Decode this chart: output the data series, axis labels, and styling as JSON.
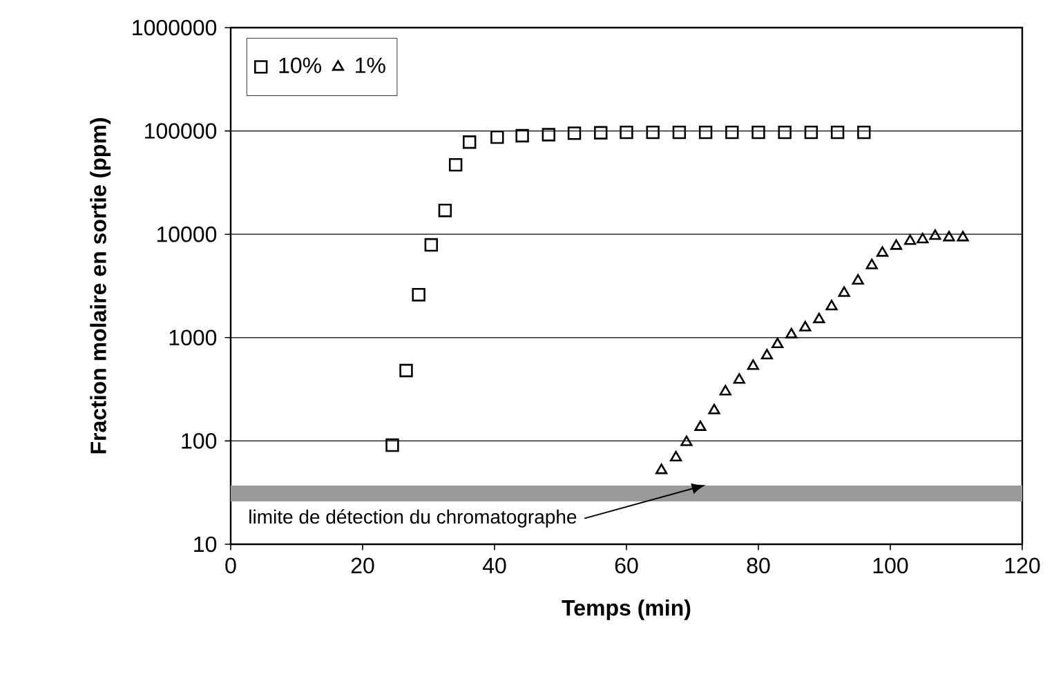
{
  "chart_data": {
    "type": "scatter",
    "xlabel": "Temps (min)",
    "ylabel": "Fraction molaire en sortie (ppm)",
    "log": "y",
    "grid": "y",
    "legend": "top left",
    "xlim": [
      0,
      120
    ],
    "xticks": [
      0,
      20,
      40,
      60,
      80,
      100,
      120
    ],
    "ylim": [
      10,
      1000000
    ],
    "yticks": [
      10,
      100,
      1000,
      10000,
      100000,
      1000000
    ],
    "series": [
      {
        "name": "10%",
        "color": "#000000",
        "marker": "square",
        "x": [
          24.5,
          26.6,
          28.5,
          30.4,
          32.5,
          34.1,
          36.2,
          40.4,
          44.2,
          48.2,
          52.1,
          56.1,
          60,
          64,
          68,
          72,
          76,
          80,
          84,
          88,
          92,
          96
        ],
        "values": [
          91,
          480,
          2600,
          7900,
          17000,
          47000,
          78000,
          87000,
          90000,
          92000,
          95000,
          96000,
          97000,
          97000,
          97000,
          97000,
          97000,
          97000,
          97000,
          97000,
          97000,
          97000
        ]
      },
      {
        "name": "1%",
        "color": "#000000",
        "marker": "triangle",
        "x": [
          65.3,
          67.5,
          69.1,
          71.2,
          73.3,
          75.0,
          77.1,
          79.2,
          81.3,
          82.9,
          85.0,
          87.1,
          89.2,
          91.1,
          93.0,
          95.1,
          97.2,
          98.8,
          100.9,
          103.0,
          104.9,
          106.8,
          108.9,
          111.0
        ],
        "values": [
          52,
          69,
          97,
          136,
          197,
          300,
          390,
          530,
          670,
          860,
          1070,
          1250,
          1500,
          2000,
          2700,
          3550,
          5000,
          6600,
          7700,
          8600,
          8900,
          9600,
          9300,
          9300
        ]
      }
    ],
    "bands": [
      {
        "axis": "y",
        "from": 26,
        "to": 37,
        "label": "limite de détection du chromatographe",
        "color": "#9a9a9a"
      }
    ]
  }
}
